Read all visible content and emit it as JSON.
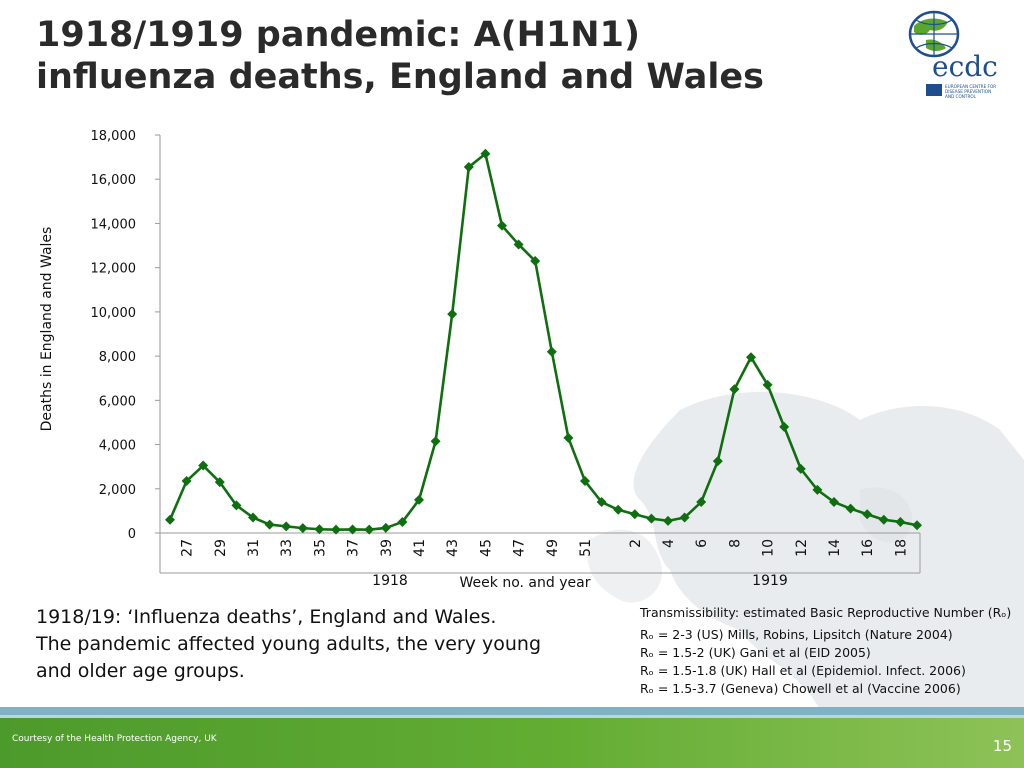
{
  "slide": {
    "title_line1": "1918/1919 pandemic: A(H1N1)",
    "title_line2": "influenza deaths, England and Wales",
    "caption_lines": [
      "1918/19: ‘Influenza deaths’, England and Wales.",
      "The pandemic affected young adults, the very young",
      "and older age groups."
    ],
    "r0_header": "Transmissibility: estimated Basic Reproductive Number (Rₒ)",
    "r0_lines": [
      "Rₒ = 2-3 (US) Mills, Robins, Lipsitch (Nature 2004)",
      "Rₒ = 1.5-2 (UK) Gani et al (EID 2005)",
      "Rₒ = 1.5-1.8 (UK) Hall et al (Epidemiol. Infect. 2006)",
      "Rₒ = 1.5-3.7 (Geneva) Chowell et al (Vaccine 2006)"
    ],
    "courtesy": "Courtesy of the Health Protection Agency, UK",
    "page_number": "15",
    "logo": {
      "text": "ecdc",
      "lines": [
        "EUROPEAN CENTRE FOR",
        "DISEASE PREVENTION",
        "AND CONTROL"
      ]
    },
    "colors": {
      "series": "#0f6e0f",
      "footer": "#5aa62f",
      "logo_blue": "#1d4f8f",
      "logo_green": "#5aa62f"
    }
  },
  "chart_data": {
    "type": "line",
    "title": "",
    "ylabel": "Deaths in England and Wales",
    "xlabel": "Week no. and year",
    "year_labels": [
      "1918",
      "1919"
    ],
    "ylim": [
      0,
      18000
    ],
    "yticks": [
      "0",
      "2,000",
      "4,000",
      "6,000",
      "8,000",
      "10,000",
      "12,000",
      "14,000",
      "16,000",
      "18,000"
    ],
    "tick_labels": [
      "27",
      "29",
      "31",
      "33",
      "35",
      "37",
      "39",
      "41",
      "43",
      "45",
      "47",
      "49",
      "51",
      "2",
      "4",
      "6",
      "8",
      "10",
      "12",
      "14",
      "16",
      "18"
    ],
    "weeks": [
      26,
      27,
      28,
      29,
      30,
      31,
      32,
      33,
      34,
      35,
      36,
      37,
      38,
      39,
      40,
      41,
      42,
      43,
      44,
      45,
      46,
      47,
      48,
      49,
      50,
      51,
      52,
      1,
      2,
      3,
      4,
      5,
      6,
      7,
      8,
      9,
      10,
      11,
      12,
      13,
      14,
      15,
      16,
      17,
      18,
      19
    ],
    "series": [
      {
        "values": [
          600,
          2350,
          3050,
          2300,
          1250,
          700,
          380,
          300,
          220,
          170,
          150,
          160,
          150,
          230,
          500,
          1500,
          4150,
          9900,
          16550,
          17150,
          13900,
          13050,
          12300,
          8200,
          4300,
          2350,
          1400,
          1050,
          850,
          650,
          550,
          700,
          1400,
          3250,
          6500,
          7950,
          6700,
          4800,
          2900,
          1950,
          1400,
          1100,
          850,
          600,
          500,
          350
        ]
      }
    ]
  }
}
